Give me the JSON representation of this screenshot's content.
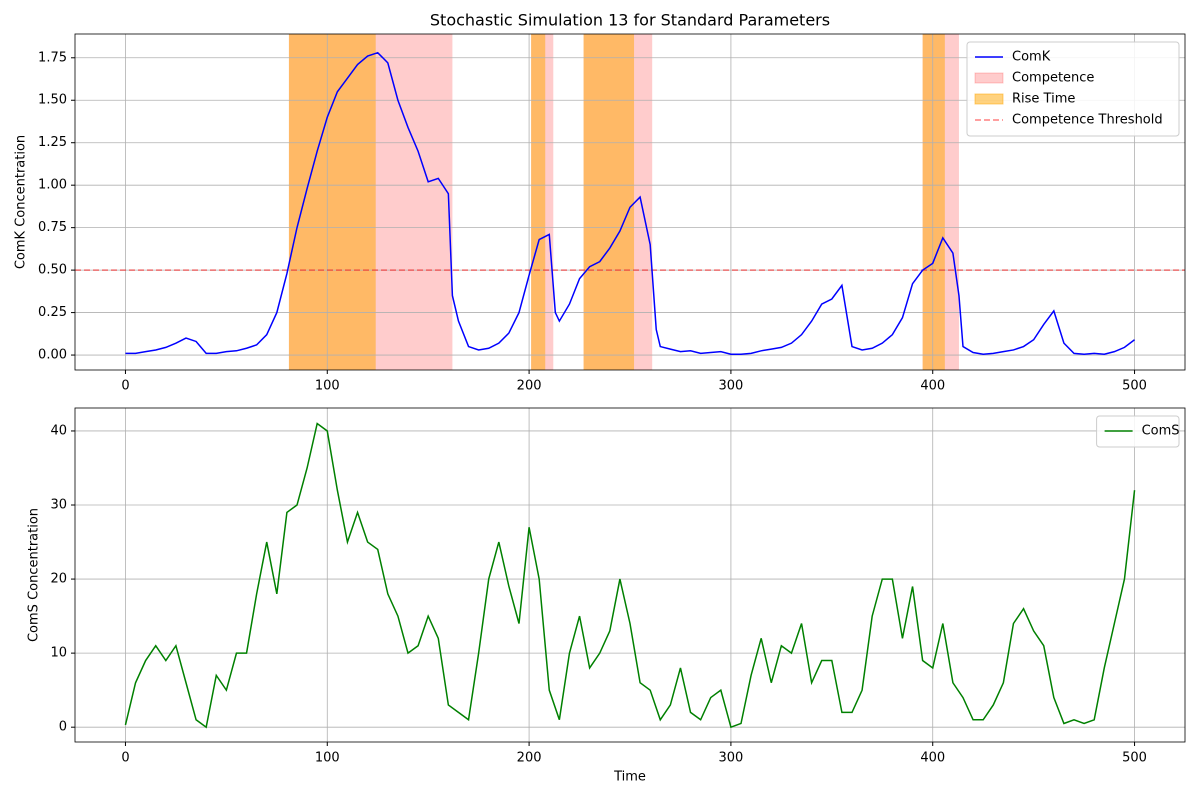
{
  "chart_data": [
    {
      "type": "line",
      "title": "Stochastic Simulation 13 for Standard Parameters",
      "y_label": "ComK Concentration",
      "x": [
        0,
        5,
        10,
        15,
        20,
        25,
        30,
        35,
        40,
        45,
        50,
        55,
        60,
        65,
        70,
        75,
        80,
        85,
        90,
        95,
        100,
        105,
        110,
        115,
        120,
        125,
        130,
        135,
        140,
        145,
        150,
        155,
        160,
        162,
        165,
        170,
        175,
        180,
        185,
        190,
        195,
        200,
        205,
        210,
        213,
        215,
        220,
        225,
        230,
        235,
        240,
        245,
        250,
        255,
        260,
        263,
        265,
        270,
        275,
        280,
        285,
        290,
        295,
        300,
        305,
        310,
        315,
        320,
        325,
        330,
        335,
        340,
        345,
        350,
        355,
        360,
        365,
        370,
        375,
        380,
        385,
        390,
        395,
        400,
        405,
        410,
        413,
        415,
        420,
        425,
        430,
        435,
        440,
        445,
        450,
        455,
        460,
        465,
        470,
        475,
        480,
        485,
        490,
        495,
        500
      ],
      "series": [
        {
          "name": "ComK",
          "color": "#0000ff",
          "values": [
            0.01,
            0.01,
            0.02,
            0.03,
            0.045,
            0.07,
            0.1,
            0.08,
            0.01,
            0.01,
            0.02,
            0.025,
            0.04,
            0.06,
            0.12,
            0.25,
            0.48,
            0.75,
            0.98,
            1.2,
            1.4,
            1.55,
            1.63,
            1.71,
            1.76,
            1.78,
            1.72,
            1.5,
            1.34,
            1.2,
            1.02,
            1.04,
            0.95,
            0.35,
            0.2,
            0.05,
            0.03,
            0.04,
            0.07,
            0.13,
            0.25,
            0.47,
            0.68,
            0.71,
            0.25,
            0.2,
            0.3,
            0.45,
            0.52,
            0.55,
            0.63,
            0.73,
            0.87,
            0.93,
            0.65,
            0.15,
            0.05,
            0.035,
            0.02,
            0.025,
            0.01,
            0.015,
            0.02,
            0.005,
            0.005,
            0.01,
            0.025,
            0.035,
            0.045,
            0.07,
            0.12,
            0.2,
            0.3,
            0.33,
            0.41,
            0.05,
            0.03,
            0.04,
            0.07,
            0.12,
            0.22,
            0.42,
            0.5,
            0.54,
            0.69,
            0.6,
            0.35,
            0.05,
            0.015,
            0.005,
            0.01,
            0.02,
            0.03,
            0.05,
            0.09,
            0.18,
            0.26,
            0.07,
            0.01,
            0.005,
            0.01,
            0.005,
            0.02,
            0.045,
            0.09
          ]
        }
      ],
      "spans": [
        {
          "name": "Competence",
          "color": "#ff0000",
          "opacity": 0.2,
          "ranges": [
            [
              81,
              162
            ],
            [
              201,
              212
            ],
            [
              227,
              261
            ],
            [
              395,
              413
            ]
          ]
        },
        {
          "name": "Rise Time",
          "color": "#ffa500",
          "opacity": 0.5,
          "ranges": [
            [
              81,
              124
            ],
            [
              201,
              208
            ],
            [
              227,
              252
            ],
            [
              395,
              406
            ]
          ]
        }
      ],
      "hlines": [
        {
          "name": "Competence Threshold",
          "value": 0.5,
          "color": "#ff0000",
          "opacity": 0.5,
          "linestyle": "dashed"
        }
      ],
      "xlim": [
        -25,
        525
      ],
      "xticks": [
        0,
        100,
        200,
        300,
        400,
        500
      ],
      "ylim": [
        -0.088,
        1.89
      ],
      "yticks": [
        {
          "value": 0,
          "label": "0.00"
        },
        0.25,
        {
          "value": 0.5,
          "label": "0.50"
        },
        0.75,
        {
          "value": 1,
          "label": "1.00"
        },
        1.25,
        {
          "value": 1.5,
          "label": "1.50"
        },
        1.75
      ],
      "grid": true,
      "legend": "upper right"
    },
    {
      "type": "line",
      "x_label": "Time",
      "y_label": "ComS Concentration",
      "x": [
        0,
        5,
        10,
        15,
        20,
        25,
        30,
        35,
        40,
        45,
        50,
        55,
        60,
        65,
        70,
        75,
        80,
        85,
        90,
        95,
        100,
        105,
        110,
        115,
        120,
        125,
        130,
        135,
        140,
        145,
        150,
        155,
        160,
        165,
        170,
        175,
        180,
        185,
        190,
        195,
        200,
        205,
        210,
        215,
        220,
        225,
        230,
        235,
        240,
        245,
        250,
        255,
        260,
        265,
        270,
        275,
        280,
        285,
        290,
        295,
        300,
        305,
        310,
        315,
        320,
        325,
        330,
        335,
        340,
        345,
        350,
        355,
        360,
        365,
        370,
        375,
        380,
        385,
        390,
        395,
        400,
        405,
        410,
        415,
        420,
        425,
        430,
        435,
        440,
        445,
        450,
        455,
        460,
        465,
        470,
        475,
        480,
        485,
        490,
        495,
        500
      ],
      "series": [
        {
          "name": "ComS",
          "color": "#008000",
          "values": [
            0.3,
            6,
            9,
            11,
            9,
            11,
            6,
            1,
            0,
            7,
            5,
            10,
            10,
            18,
            25,
            18,
            29,
            30,
            35,
            41,
            40,
            32,
            25,
            29,
            25,
            24,
            18,
            15,
            10,
            11,
            15,
            12,
            3,
            2,
            1,
            10,
            20,
            25,
            19,
            14,
            27,
            20,
            5,
            1,
            10,
            15,
            8,
            10,
            13,
            20,
            14,
            6,
            5,
            1,
            3,
            8,
            2,
            1,
            4,
            5,
            0,
            0.5,
            7,
            12,
            6,
            11,
            10,
            14,
            6,
            9,
            9,
            2,
            2,
            5,
            15,
            20,
            20,
            12,
            19,
            9,
            8,
            14,
            6,
            4,
            1,
            1,
            3,
            6,
            14,
            16,
            13,
            11,
            4,
            0.5,
            1,
            0.5,
            1,
            8,
            14,
            20,
            32
          ]
        }
      ],
      "xlim": [
        -25,
        525
      ],
      "xticks": [
        0,
        100,
        200,
        300,
        400,
        500
      ],
      "ylim": [
        -2,
        43.1
      ],
      "yticks": [
        0,
        10,
        20,
        30,
        40
      ],
      "grid": true,
      "legend": "upper right"
    }
  ]
}
